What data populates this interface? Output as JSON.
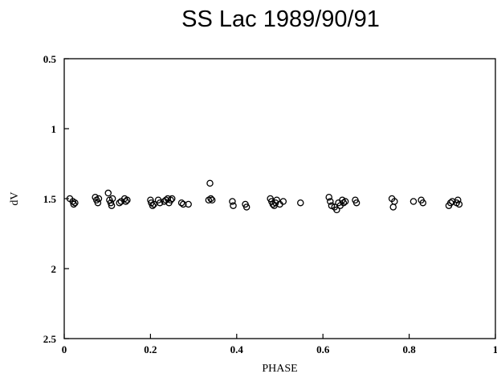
{
  "chart_data": {
    "type": "scatter",
    "title": "SS Lac 1989/90/91",
    "xlabel": "PHASE",
    "ylabel": "dV",
    "xlim": [
      0,
      1
    ],
    "ylim": [
      0.5,
      2.5
    ],
    "y_inverted": true,
    "grid": false,
    "marker": "open-circle",
    "marker_color": "#000000",
    "x_ticks": [
      {
        "value": 0,
        "label": "0"
      },
      {
        "value": 0.2,
        "label": "0.2"
      },
      {
        "value": 0.4,
        "label": "0.4"
      },
      {
        "value": 0.6,
        "label": "0.6"
      },
      {
        "value": 0.8,
        "label": "0.8"
      },
      {
        "value": 1,
        "label": "1"
      }
    ],
    "y_ticks": [
      {
        "value": 0.5,
        "label": "0.5"
      },
      {
        "value": 1,
        "label": "1"
      },
      {
        "value": 1.5,
        "label": "1.5"
      },
      {
        "value": 2,
        "label": "2"
      },
      {
        "value": 2.5,
        "label": "2.5"
      }
    ],
    "points": [
      {
        "x": 0.013,
        "y": 1.5
      },
      {
        "x": 0.02,
        "y": 1.52
      },
      {
        "x": 0.022,
        "y": 1.54
      },
      {
        "x": 0.025,
        "y": 1.53
      },
      {
        "x": 0.072,
        "y": 1.49
      },
      {
        "x": 0.075,
        "y": 1.51
      },
      {
        "x": 0.078,
        "y": 1.53
      },
      {
        "x": 0.08,
        "y": 1.5
      },
      {
        "x": 0.102,
        "y": 1.46
      },
      {
        "x": 0.105,
        "y": 1.51
      },
      {
        "x": 0.108,
        "y": 1.53
      },
      {
        "x": 0.11,
        "y": 1.55
      },
      {
        "x": 0.112,
        "y": 1.5
      },
      {
        "x": 0.128,
        "y": 1.53
      },
      {
        "x": 0.132,
        "y": 1.52
      },
      {
        "x": 0.14,
        "y": 1.5
      },
      {
        "x": 0.143,
        "y": 1.52
      },
      {
        "x": 0.146,
        "y": 1.51
      },
      {
        "x": 0.2,
        "y": 1.51
      },
      {
        "x": 0.202,
        "y": 1.53
      },
      {
        "x": 0.205,
        "y": 1.55
      },
      {
        "x": 0.208,
        "y": 1.54
      },
      {
        "x": 0.218,
        "y": 1.51
      },
      {
        "x": 0.222,
        "y": 1.53
      },
      {
        "x": 0.232,
        "y": 1.52
      },
      {
        "x": 0.236,
        "y": 1.51
      },
      {
        "x": 0.24,
        "y": 1.5
      },
      {
        "x": 0.243,
        "y": 1.53
      },
      {
        "x": 0.247,
        "y": 1.51
      },
      {
        "x": 0.25,
        "y": 1.5
      },
      {
        "x": 0.272,
        "y": 1.53
      },
      {
        "x": 0.276,
        "y": 1.54
      },
      {
        "x": 0.288,
        "y": 1.54
      },
      {
        "x": 0.335,
        "y": 1.51
      },
      {
        "x": 0.338,
        "y": 1.39
      },
      {
        "x": 0.34,
        "y": 1.5
      },
      {
        "x": 0.343,
        "y": 1.51
      },
      {
        "x": 0.39,
        "y": 1.52
      },
      {
        "x": 0.392,
        "y": 1.55
      },
      {
        "x": 0.42,
        "y": 1.54
      },
      {
        "x": 0.423,
        "y": 1.56
      },
      {
        "x": 0.478,
        "y": 1.5
      },
      {
        "x": 0.481,
        "y": 1.52
      },
      {
        "x": 0.484,
        "y": 1.54
      },
      {
        "x": 0.487,
        "y": 1.55
      },
      {
        "x": 0.49,
        "y": 1.53
      },
      {
        "x": 0.493,
        "y": 1.51
      },
      {
        "x": 0.5,
        "y": 1.54
      },
      {
        "x": 0.508,
        "y": 1.52
      },
      {
        "x": 0.548,
        "y": 1.53
      },
      {
        "x": 0.614,
        "y": 1.49
      },
      {
        "x": 0.617,
        "y": 1.52
      },
      {
        "x": 0.62,
        "y": 1.55
      },
      {
        "x": 0.627,
        "y": 1.56
      },
      {
        "x": 0.632,
        "y": 1.58
      },
      {
        "x": 0.636,
        "y": 1.53
      },
      {
        "x": 0.64,
        "y": 1.55
      },
      {
        "x": 0.645,
        "y": 1.51
      },
      {
        "x": 0.648,
        "y": 1.53
      },
      {
        "x": 0.652,
        "y": 1.52
      },
      {
        "x": 0.675,
        "y": 1.51
      },
      {
        "x": 0.678,
        "y": 1.53
      },
      {
        "x": 0.76,
        "y": 1.5
      },
      {
        "x": 0.763,
        "y": 1.56
      },
      {
        "x": 0.766,
        "y": 1.52
      },
      {
        "x": 0.81,
        "y": 1.52
      },
      {
        "x": 0.828,
        "y": 1.51
      },
      {
        "x": 0.832,
        "y": 1.53
      },
      {
        "x": 0.892,
        "y": 1.55
      },
      {
        "x": 0.896,
        "y": 1.53
      },
      {
        "x": 0.9,
        "y": 1.52
      },
      {
        "x": 0.91,
        "y": 1.53
      },
      {
        "x": 0.913,
        "y": 1.51
      },
      {
        "x": 0.916,
        "y": 1.54
      }
    ]
  }
}
